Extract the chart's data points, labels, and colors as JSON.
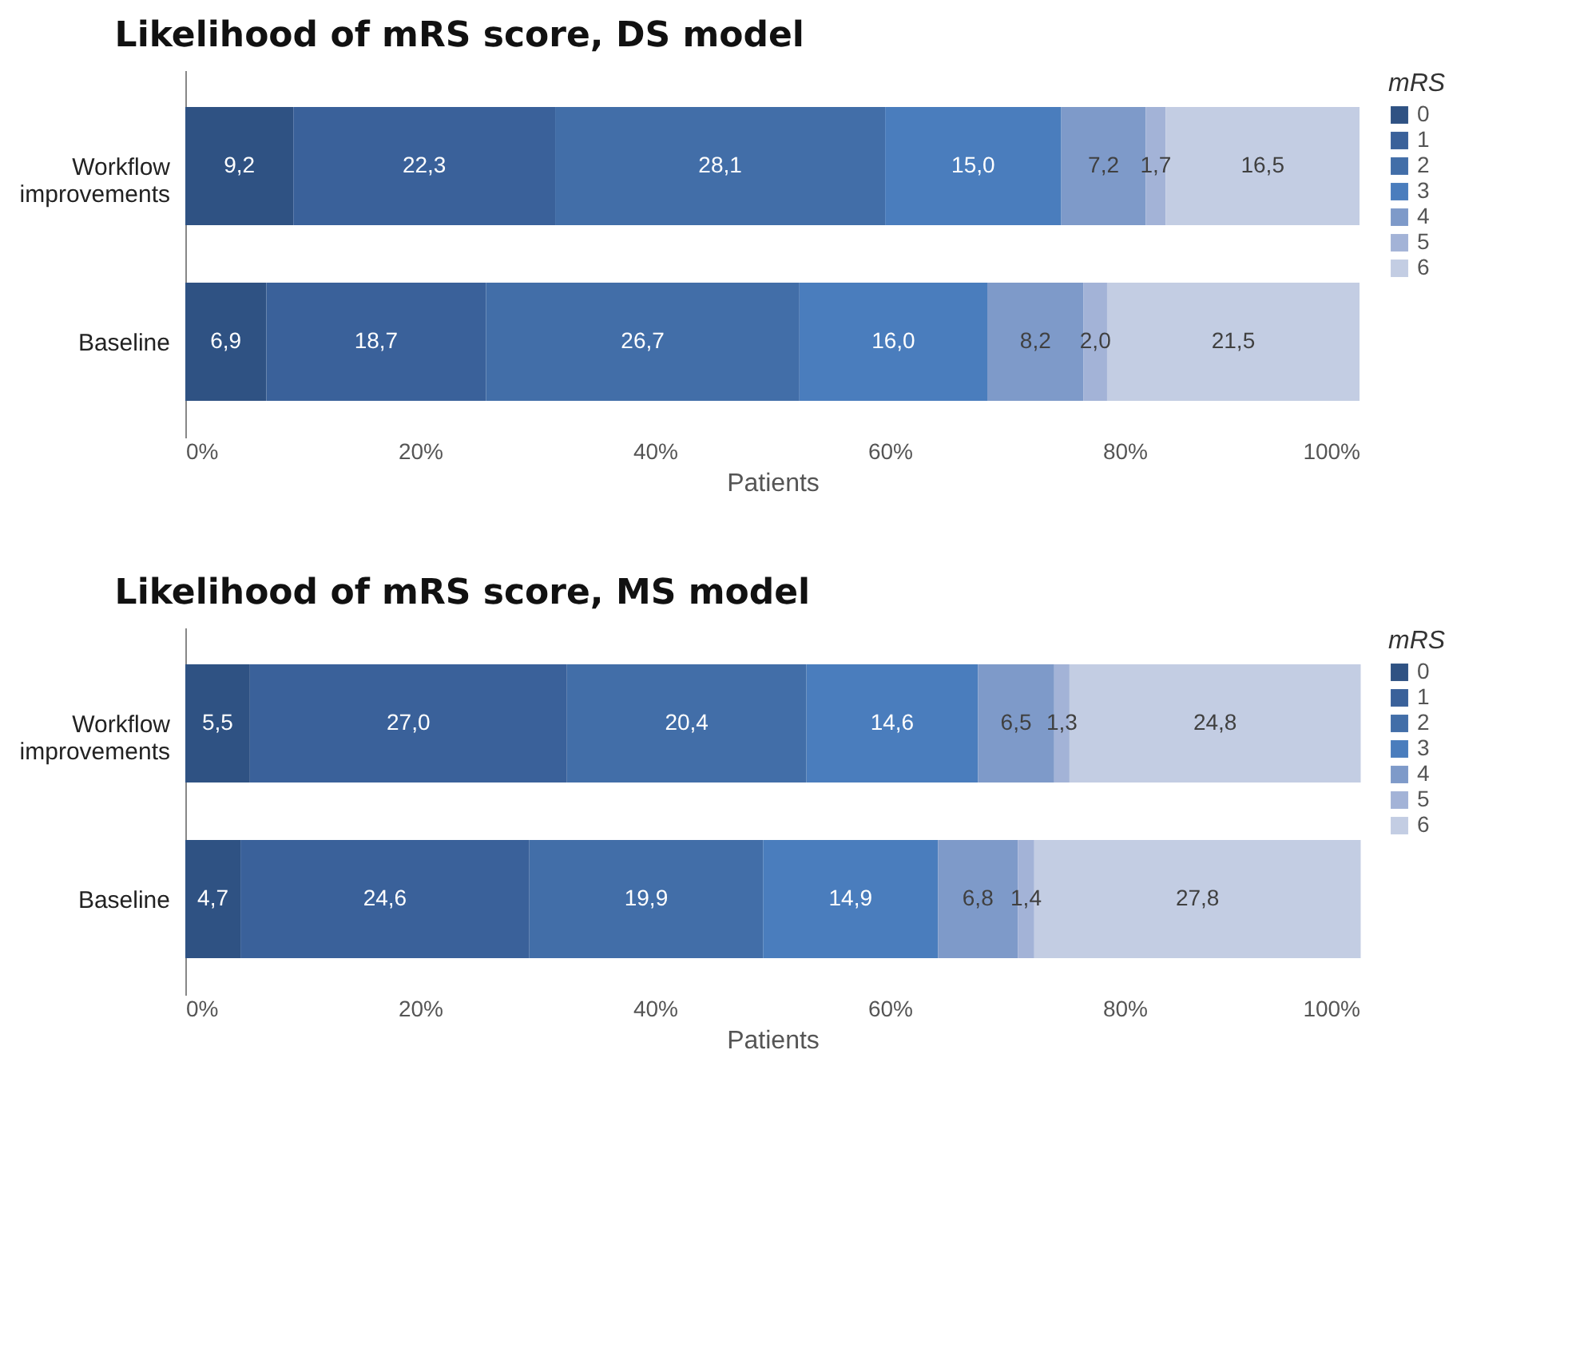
{
  "chart_data": [
    {
      "type": "bar",
      "orientation": "horizontal",
      "stacked": true,
      "title": "Likelihood of mRS score, DS model",
      "xlabel": "Patients",
      "legend_title": "mRS",
      "legend": "right",
      "grid": false,
      "categories": [
        "Workflow improvements",
        "Baseline"
      ],
      "xlim": [
        0,
        100
      ],
      "xticks": [
        {
          "value": 0,
          "label": "0%"
        },
        {
          "value": 20,
          "label": "20%"
        },
        {
          "value": 40,
          "label": "40%"
        },
        {
          "value": 60,
          "label": "60%"
        },
        {
          "value": 80,
          "label": "80%"
        },
        {
          "value": 100,
          "label": "100%"
        }
      ],
      "series": [
        {
          "name": "0",
          "color": "#2f5283",
          "values": [
            9.2,
            6.9
          ],
          "value_labels": [
            "9,2",
            "6,9"
          ]
        },
        {
          "name": "1",
          "color": "#3a619a",
          "values": [
            22.3,
            18.7
          ],
          "value_labels": [
            "22,3",
            "18,7"
          ]
        },
        {
          "name": "2",
          "color": "#426ea8",
          "values": [
            28.1,
            26.7
          ],
          "value_labels": [
            "28,1",
            "26,7"
          ]
        },
        {
          "name": "3",
          "color": "#4a7dbd",
          "values": [
            15.0,
            16.0
          ],
          "value_labels": [
            "15,0",
            "16,0"
          ]
        },
        {
          "name": "4",
          "color": "#7e9ac9",
          "values": [
            7.2,
            8.2
          ],
          "value_labels": [
            "7,2",
            "8,2"
          ]
        },
        {
          "name": "5",
          "color": "#a3b3d7",
          "values": [
            1.7,
            2.0
          ],
          "value_labels": [
            "1,7",
            "2,0"
          ]
        },
        {
          "name": "6",
          "color": "#c3cde3",
          "values": [
            16.5,
            21.5
          ],
          "value_labels": [
            "16,5",
            "21,5"
          ]
        }
      ]
    },
    {
      "type": "bar",
      "orientation": "horizontal",
      "stacked": true,
      "title": "Likelihood of mRS score, MS model",
      "xlabel": "Patients",
      "legend_title": "mRS",
      "legend": "right",
      "grid": false,
      "categories": [
        "Workflow improvements",
        "Baseline"
      ],
      "xlim": [
        0,
        100
      ],
      "xticks": [
        {
          "value": 0,
          "label": "0%"
        },
        {
          "value": 20,
          "label": "20%"
        },
        {
          "value": 40,
          "label": "40%"
        },
        {
          "value": 60,
          "label": "60%"
        },
        {
          "value": 80,
          "label": "80%"
        },
        {
          "value": 100,
          "label": "100%"
        }
      ],
      "series": [
        {
          "name": "0",
          "color": "#2f5283",
          "values": [
            5.5,
            4.7
          ],
          "value_labels": [
            "5,5",
            "4,7"
          ]
        },
        {
          "name": "1",
          "color": "#3a619a",
          "values": [
            27.0,
            24.6
          ],
          "value_labels": [
            "27,0",
            "24,6"
          ]
        },
        {
          "name": "2",
          "color": "#426ea8",
          "values": [
            20.4,
            19.9
          ],
          "value_labels": [
            "20,4",
            "19,9"
          ]
        },
        {
          "name": "3",
          "color": "#4a7dbd",
          "values": [
            14.6,
            14.9
          ],
          "value_labels": [
            "14,6",
            "14,9"
          ]
        },
        {
          "name": "4",
          "color": "#7e9ac9",
          "values": [
            6.5,
            6.8
          ],
          "value_labels": [
            "6,5",
            "6,8"
          ]
        },
        {
          "name": "5",
          "color": "#a3b3d7",
          "values": [
            1.3,
            1.4
          ],
          "value_labels": [
            "1,3",
            "1,4"
          ]
        },
        {
          "name": "6",
          "color": "#c3cde3",
          "values": [
            24.8,
            27.8
          ],
          "value_labels": [
            "24,8",
            "27,8"
          ]
        }
      ]
    }
  ]
}
